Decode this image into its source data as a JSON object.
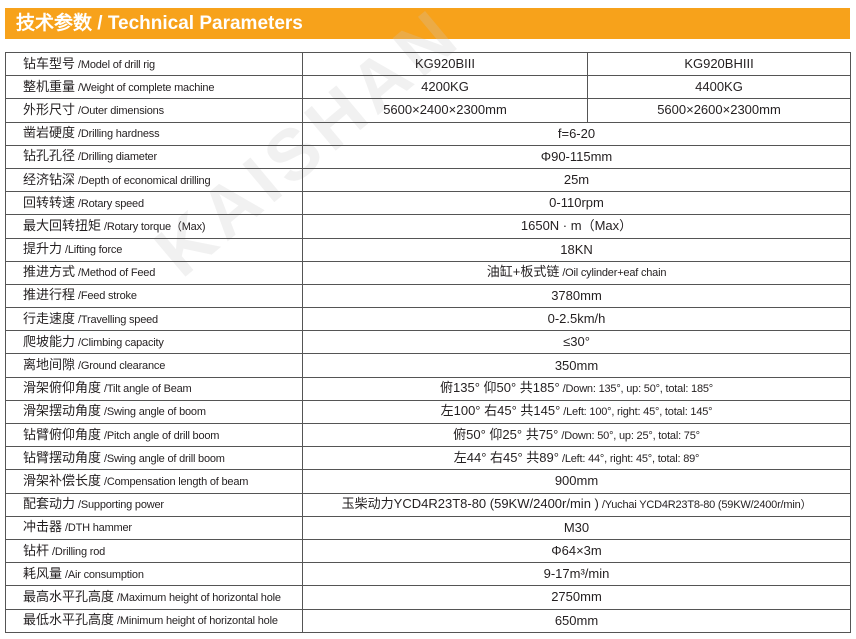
{
  "header": {
    "title": "技术参数 / Technical Parameters"
  },
  "watermark": "KAISHAN",
  "colors": {
    "header_bg": "#f7a21b",
    "border": "#555555"
  },
  "rows": [
    {
      "cn": "钻车型号",
      "en": "/Model of drill rig",
      "values": [
        "KG920BIII",
        "KG920BHIII"
      ]
    },
    {
      "cn": "整机重量",
      "en": "/Weight of complete machine",
      "values": [
        "4200KG",
        "4400KG"
      ]
    },
    {
      "cn": "外形尺寸",
      "en": "/Outer dimensions",
      "values": [
        "5600×2400×2300mm",
        "5600×2600×2300mm"
      ]
    },
    {
      "cn": "凿岩硬度",
      "en": "/Drilling hardness",
      "value": "f=6-20"
    },
    {
      "cn": "钻孔孔径",
      "en": "/Drilling diameter",
      "value": "Φ90-115mm"
    },
    {
      "cn": "经济钻深",
      "en": "/Depth of economical drilling",
      "value": "25m"
    },
    {
      "cn": "回转转速",
      "en": "/Rotary speed",
      "value": "0-110rpm"
    },
    {
      "cn": "最大回转扭矩",
      "en": "/Rotary torque（Max)",
      "value": "1650N · m（Max）"
    },
    {
      "cn": "提升力",
      "en": "/Lifting force",
      "value": "18KN"
    },
    {
      "cn": "推进方式",
      "en": "/Method of Feed",
      "value_cn": "油缸+板式链",
      "value_en": "/Oil cylinder+eaf chain"
    },
    {
      "cn": "推进行程",
      "en": "/Feed stroke",
      "value": "3780mm"
    },
    {
      "cn": "行走速度",
      "en": "/Travelling speed",
      "value": "0-2.5km/h"
    },
    {
      "cn": "爬坡能力",
      "en": "/Climbing capacity",
      "value": "≤30°"
    },
    {
      "cn": "离地间隙",
      "en": "/Ground clearance",
      "value": "350mm"
    },
    {
      "cn": "滑架俯仰角度",
      "en": "/Tilt angle of Beam",
      "value_cn": "俯135°  仰50°  共185°",
      "value_en": "/Down: 135°, up: 50°, total: 185°"
    },
    {
      "cn": "滑架摆动角度",
      "en": "/Swing angle of boom",
      "value_cn": "左100°  右45°  共145°",
      "value_en": "/Left: 100°, right: 45°, total: 145°"
    },
    {
      "cn": "钻臂俯仰角度",
      "en": "/Pitch angle of drill boom",
      "value_cn": "俯50°  仰25°  共75°",
      "value_en": "/Down: 50°, up: 25°, total: 75°"
    },
    {
      "cn": "钻臂摆动角度",
      "en": "/Swing angle of drill boom",
      "value_cn": "左44°  右45°  共89°",
      "value_en": "/Left: 44°, right: 45°, total: 89°"
    },
    {
      "cn": "滑架补偿长度",
      "en": "/Compensation length of beam",
      "value": "900mm"
    },
    {
      "cn": "配套动力",
      "en": "/Supporting power",
      "value_cn": "玉柴动力YCD4R23T8-80 (59KW/2400r/min )",
      "value_en": "/Yuchai YCD4R23T8-80 (59KW/2400r/min）"
    },
    {
      "cn": "冲击器",
      "en": "/DTH hammer",
      "value": "M30"
    },
    {
      "cn": "钻杆",
      "en": "/Drilling rod",
      "value": "Φ64×3m"
    },
    {
      "cn": "耗风量",
      "en": "/Air consumption",
      "value": "9-17m³/min"
    },
    {
      "cn": "最高水平孔高度",
      "en": "/Maximum height of horizontal hole",
      "value": "2750mm"
    },
    {
      "cn": "最低水平孔高度",
      "en": "/Minimum height of horizontal hole",
      "value": "650mm"
    }
  ]
}
